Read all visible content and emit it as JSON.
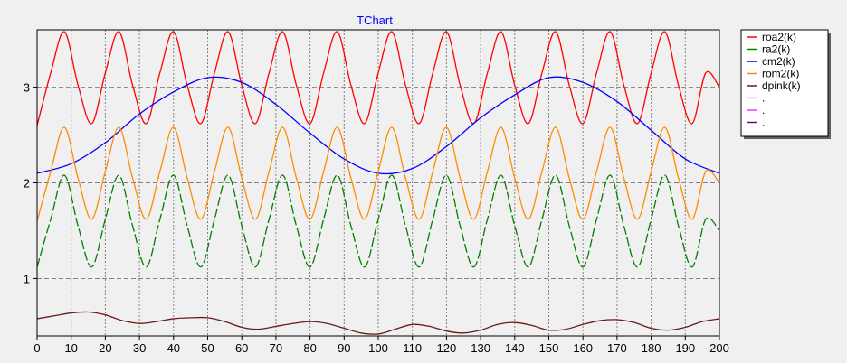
{
  "chart_data": {
    "type": "line",
    "title": "TChart",
    "xlabel": "",
    "ylabel": "",
    "xlim": [
      0,
      200
    ],
    "ylim": [
      0.4,
      3.6
    ],
    "x_ticks": [
      0,
      10,
      20,
      30,
      40,
      50,
      60,
      70,
      80,
      90,
      100,
      110,
      120,
      130,
      140,
      150,
      160,
      170,
      180,
      190,
      200
    ],
    "y_ticks": [
      1,
      2,
      3
    ],
    "grid": true,
    "legend_position": "right",
    "series": [
      {
        "name": "roa2(k)",
        "color": "#ff0000",
        "dash": "",
        "x": [
          0,
          4,
          8,
          12,
          16,
          20,
          24,
          28,
          32,
          36,
          40,
          44,
          48,
          52,
          56,
          60,
          64,
          68,
          72,
          76,
          80,
          84,
          88,
          92,
          96,
          100,
          104,
          108,
          112,
          116,
          120,
          124,
          128,
          132,
          136,
          140,
          144,
          148,
          152,
          156,
          160,
          164,
          168,
          172,
          176,
          180,
          184,
          188,
          192,
          196,
          200
        ],
        "y": [
          2.6,
          3.15,
          3.58,
          3.02,
          2.62,
          3.15,
          3.58,
          3.02,
          2.62,
          3.15,
          3.58,
          3.02,
          2.62,
          3.15,
          3.58,
          3.02,
          2.62,
          3.15,
          3.58,
          3.02,
          2.62,
          3.15,
          3.58,
          3.02,
          2.62,
          3.15,
          3.58,
          3.02,
          2.62,
          3.15,
          3.58,
          3.02,
          2.62,
          3.15,
          3.58,
          3.02,
          2.62,
          3.15,
          3.58,
          3.02,
          2.62,
          3.15,
          3.58,
          3.02,
          2.62,
          3.15,
          3.58,
          3.02,
          2.62,
          3.15,
          3.0
        ]
      },
      {
        "name": "ra2(k)",
        "color": "#008000",
        "dash": "10,3",
        "x": [
          0,
          4,
          8,
          12,
          16,
          20,
          24,
          28,
          32,
          36,
          40,
          44,
          48,
          52,
          56,
          60,
          64,
          68,
          72,
          76,
          80,
          84,
          88,
          92,
          96,
          100,
          104,
          108,
          112,
          116,
          120,
          124,
          128,
          132,
          136,
          140,
          144,
          148,
          152,
          156,
          160,
          164,
          168,
          172,
          176,
          180,
          184,
          188,
          192,
          196,
          200
        ],
        "y": [
          1.12,
          1.62,
          2.08,
          1.55,
          1.12,
          1.62,
          2.08,
          1.55,
          1.12,
          1.62,
          2.08,
          1.55,
          1.12,
          1.62,
          2.08,
          1.55,
          1.12,
          1.62,
          2.08,
          1.55,
          1.12,
          1.62,
          2.08,
          1.55,
          1.12,
          1.62,
          2.08,
          1.55,
          1.12,
          1.62,
          2.08,
          1.55,
          1.12,
          1.62,
          2.08,
          1.55,
          1.12,
          1.62,
          2.08,
          1.55,
          1.12,
          1.62,
          2.08,
          1.55,
          1.12,
          1.62,
          2.08,
          1.55,
          1.12,
          1.62,
          1.5
        ]
      },
      {
        "name": "cm2(k)",
        "color": "#0000ff",
        "dash": "",
        "x": [
          0,
          10,
          20,
          30,
          40,
          50,
          60,
          70,
          80,
          90,
          100,
          110,
          120,
          130,
          140,
          150,
          160,
          170,
          180,
          190,
          200
        ],
        "y": [
          2.1,
          2.2,
          2.42,
          2.72,
          2.95,
          3.1,
          3.05,
          2.82,
          2.52,
          2.25,
          2.1,
          2.15,
          2.38,
          2.68,
          2.92,
          3.1,
          3.05,
          2.85,
          2.55,
          2.25,
          2.1
        ]
      },
      {
        "name": "rom2(k)",
        "color": "#ff8c00",
        "dash": "",
        "x": [
          0,
          4,
          8,
          12,
          16,
          20,
          24,
          28,
          32,
          36,
          40,
          44,
          48,
          52,
          56,
          60,
          64,
          68,
          72,
          76,
          80,
          84,
          88,
          92,
          96,
          100,
          104,
          108,
          112,
          116,
          120,
          124,
          128,
          132,
          136,
          140,
          144,
          148,
          152,
          156,
          160,
          164,
          168,
          172,
          176,
          180,
          184,
          188,
          192,
          196,
          200
        ],
        "y": [
          1.6,
          2.12,
          2.58,
          2.05,
          1.62,
          2.12,
          2.58,
          2.05,
          1.62,
          2.12,
          2.58,
          2.05,
          1.62,
          2.12,
          2.58,
          2.05,
          1.62,
          2.12,
          2.58,
          2.05,
          1.62,
          2.12,
          2.58,
          2.05,
          1.62,
          2.12,
          2.58,
          2.05,
          1.62,
          2.12,
          2.58,
          2.05,
          1.62,
          2.12,
          2.58,
          2.05,
          1.62,
          2.12,
          2.58,
          2.05,
          1.62,
          2.12,
          2.58,
          2.05,
          1.62,
          2.12,
          2.58,
          2.05,
          1.62,
          2.12,
          2.0
        ]
      },
      {
        "name": "dpink(k)",
        "color": "#6b1a1a",
        "dash": "",
        "x": [
          0,
          5,
          10,
          15,
          20,
          25,
          30,
          35,
          40,
          45,
          50,
          55,
          60,
          65,
          70,
          75,
          80,
          85,
          90,
          95,
          100,
          105,
          110,
          115,
          120,
          125,
          130,
          135,
          140,
          145,
          150,
          155,
          160,
          165,
          170,
          175,
          180,
          185,
          190,
          195,
          200
        ],
        "y": [
          0.58,
          0.61,
          0.64,
          0.65,
          0.62,
          0.56,
          0.53,
          0.55,
          0.58,
          0.59,
          0.59,
          0.55,
          0.49,
          0.47,
          0.5,
          0.53,
          0.55,
          0.53,
          0.48,
          0.43,
          0.42,
          0.47,
          0.52,
          0.5,
          0.45,
          0.43,
          0.46,
          0.52,
          0.54,
          0.51,
          0.46,
          0.47,
          0.52,
          0.56,
          0.57,
          0.54,
          0.48,
          0.46,
          0.49,
          0.55,
          0.58
        ]
      }
    ],
    "legend_entries": [
      {
        "label": "roa2(k)",
        "color": "#ff0000"
      },
      {
        "label": "ra2(k)",
        "color": "#008000"
      },
      {
        "label": "cm2(k)",
        "color": "#0000ff"
      },
      {
        "label": "rom2(k)",
        "color": "#ff8c00"
      },
      {
        "label": "dpink(k)",
        "color": "#6b1a1a"
      },
      {
        "label": ".",
        "color": "#c0a0c0"
      },
      {
        "label": ".",
        "color": "#e040e0"
      },
      {
        "label": ".",
        "color": "#800080"
      }
    ],
    "colors": {
      "background": "#f0f0f0",
      "plot_background": "#f0f0f0",
      "grid": "#808080",
      "title": "#0000ff"
    }
  }
}
